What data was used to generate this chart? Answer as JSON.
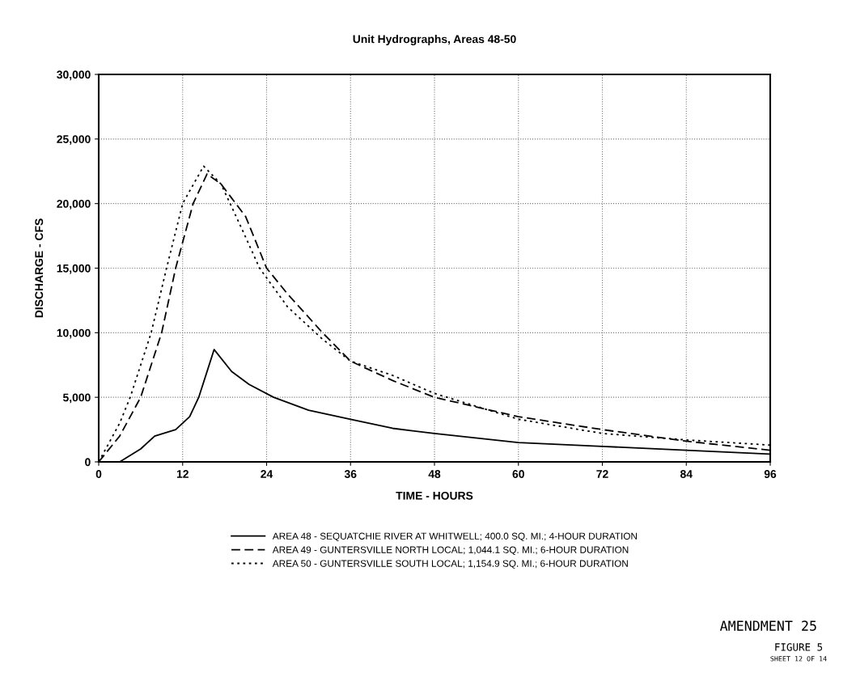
{
  "chart_data": {
    "type": "line",
    "title": "Unit Hydrographs, Areas 48-50",
    "xlabel": "TIME - HOURS",
    "ylabel": "DISCHARGE - CFS",
    "xlim": [
      0,
      96
    ],
    "xticks": [
      0,
      12,
      24,
      36,
      48,
      60,
      72,
      84,
      96
    ],
    "ylim": [
      0,
      30000
    ],
    "yticks": [
      {
        "value": 0,
        "label": "0"
      },
      {
        "value": 5000,
        "label": "5,000"
      },
      {
        "value": 10000,
        "label": "10,000"
      },
      {
        "value": 15000,
        "label": "15,000"
      },
      {
        "value": 20000,
        "label": "20,000"
      },
      {
        "value": 25000,
        "label": "25,000"
      },
      {
        "value": 30000,
        "label": "30,000"
      }
    ],
    "grid": true,
    "legend": "bottom",
    "marker": "none",
    "series": [
      {
        "name": "AREA 48 - SEQUATCHIE RIVER AT WHITWELL; 400.0 SQ. MI.; 4-HOUR DURATION",
        "color": "#000000",
        "line_style": "solid",
        "x": [
          0,
          3,
          6,
          8,
          11,
          13,
          14.3,
          16.5,
          19,
          21.5,
          25,
          30,
          36,
          42,
          48,
          60,
          72,
          84,
          96
        ],
        "values": [
          0,
          0,
          1000,
          2000,
          2500,
          3500,
          5000,
          8700,
          7000,
          6000,
          5000,
          4000,
          3300,
          2600,
          2200,
          1500,
          1200,
          900,
          600
        ]
      },
      {
        "name": "AREA 49 - GUNTERSVILLE NORTH LOCAL; 1,044.1 SQ. MI.; 6-HOUR DURATION",
        "color": "#000000",
        "line_style": "dashed",
        "x": [
          0,
          3,
          6,
          9,
          11,
          13.5,
          15.5,
          17.5,
          21,
          24,
          27,
          32,
          36,
          42,
          48,
          60,
          72,
          84,
          96
        ],
        "values": [
          0,
          2000,
          5000,
          10000,
          15000,
          20000,
          22300,
          21500,
          19000,
          15000,
          13000,
          10000,
          7800,
          6300,
          5000,
          3500,
          2500,
          1600,
          900
        ]
      },
      {
        "name": "AREA 50 - GUNTERSVILLE SOUTH LOCAL; 1,154.9 SQ. MI.; 6-HOUR DURATION",
        "color": "#000000",
        "line_style": "dotted",
        "x": [
          0,
          3,
          4.5,
          7.5,
          9.7,
          12,
          15,
          17.5,
          20.5,
          23,
          27,
          32,
          36,
          42,
          48,
          60,
          72,
          84,
          96
        ],
        "values": [
          0,
          3000,
          5000,
          10000,
          15000,
          20000,
          22900,
          21500,
          18000,
          15000,
          12000,
          9500,
          7800,
          6700,
          5300,
          3300,
          2200,
          1700,
          1300
        ]
      }
    ],
    "annotations": [
      "AMENDMENT 25",
      "FIGURE 5",
      "SHEET 12 OF 14"
    ]
  }
}
